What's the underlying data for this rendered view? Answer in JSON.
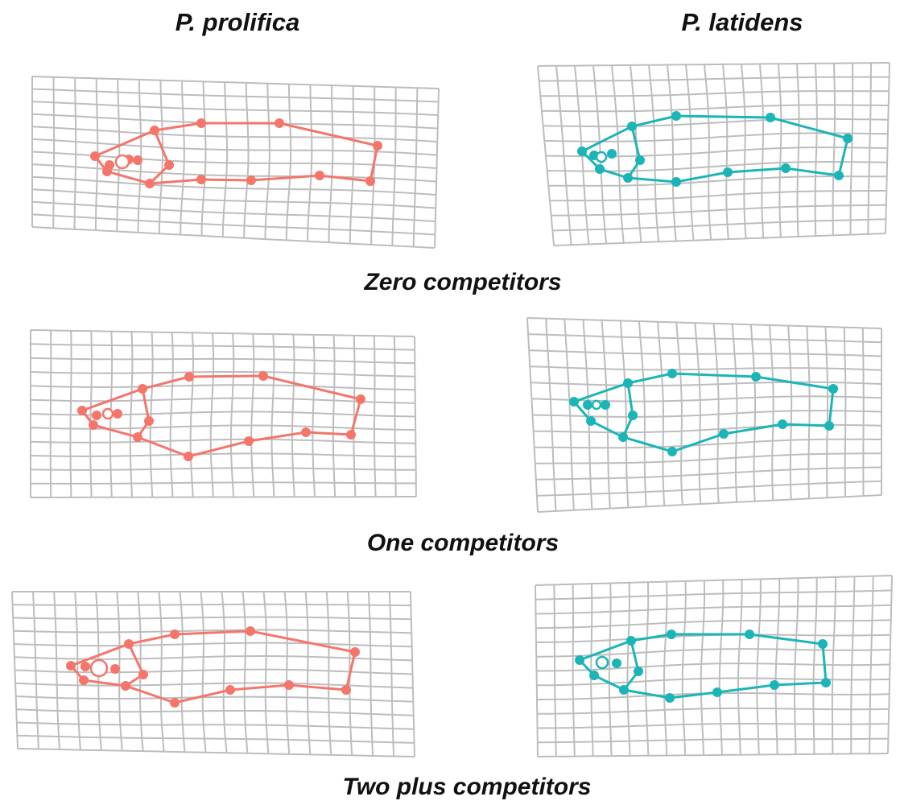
{
  "columns": [
    "P. prolifica",
    "P. latidens"
  ],
  "rows": [
    "Zero competitors",
    "One competitors",
    "Two plus competitors"
  ]
}
